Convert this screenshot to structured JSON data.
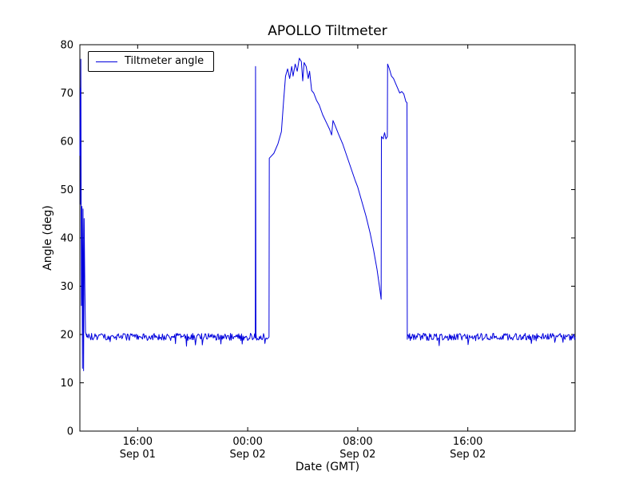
{
  "chart_data": {
    "type": "line",
    "title": "APOLLO Tiltmeter",
    "xlabel": "Date (GMT)",
    "ylabel": "Angle (deg)",
    "legend": {
      "position": "upper left",
      "entries": [
        {
          "label": "Tiltmeter angle",
          "color": "#0000dd"
        }
      ]
    },
    "axes": {
      "x_units": "hours since Sep 01 00:00 GMT",
      "xlim": [
        11.8,
        47.8
      ],
      "ylim": [
        0,
        80
      ],
      "yticks": [
        0,
        10,
        20,
        30,
        40,
        50,
        60,
        70,
        80
      ],
      "xticks": [
        {
          "t": 16,
          "time": "16:00",
          "date": "Sep 01"
        },
        {
          "t": 24,
          "time": "00:00",
          "date": "Sep 02"
        },
        {
          "t": 32,
          "time": "08:00",
          "date": "Sep 02"
        },
        {
          "t": 40,
          "time": "16:00",
          "date": "Sep 02"
        }
      ],
      "grid": false,
      "frame_color": "#000000"
    },
    "style": {
      "line_color": "#0000dd",
      "line_width": 1
    },
    "baseline": {
      "value": 19.5,
      "noise_amplitude": 0.75,
      "step_hours": 0.05,
      "seed": 1234
    },
    "segments": [
      {
        "mode": "points",
        "points": [
          [
            11.8,
            57
          ],
          [
            11.83,
            71
          ],
          [
            11.85,
            47
          ],
          [
            11.87,
            77
          ],
          [
            11.91,
            26
          ],
          [
            11.95,
            46.5
          ],
          [
            11.99,
            13
          ],
          [
            12.03,
            46
          ],
          [
            12.07,
            12.5
          ],
          [
            12.11,
            44
          ],
          [
            12.16,
            30
          ],
          [
            12.21,
            20.5
          ],
          [
            12.3,
            19.5
          ]
        ]
      },
      {
        "mode": "noise",
        "from": 12.3,
        "to": 24.54
      },
      {
        "mode": "points",
        "points": [
          [
            24.55,
            19.3
          ],
          [
            24.57,
            75.5
          ],
          [
            24.6,
            19.3
          ]
        ]
      },
      {
        "mode": "noise",
        "from": 24.6,
        "to": 25.55
      },
      {
        "mode": "points",
        "points": [
          [
            25.57,
            56.5
          ],
          [
            25.9,
            57.5
          ],
          [
            26.2,
            59.5
          ],
          [
            26.45,
            62
          ],
          [
            26.6,
            68
          ],
          [
            26.75,
            73.5
          ],
          [
            26.9,
            75
          ],
          [
            27.05,
            73
          ],
          [
            27.2,
            75.5
          ],
          [
            27.3,
            73.5
          ],
          [
            27.45,
            76
          ],
          [
            27.6,
            74.5
          ],
          [
            27.75,
            77.2
          ],
          [
            27.9,
            76.5
          ],
          [
            28.0,
            72.5
          ],
          [
            28.1,
            76.3
          ],
          [
            28.25,
            75.5
          ],
          [
            28.4,
            73
          ],
          [
            28.5,
            74.5
          ],
          [
            28.65,
            70.5
          ],
          [
            28.8,
            70
          ],
          [
            29.0,
            68.5
          ],
          [
            29.2,
            67.5
          ],
          [
            29.45,
            65.5
          ],
          [
            29.7,
            64
          ],
          [
            29.95,
            62.5
          ],
          [
            30.1,
            61.3
          ],
          [
            30.2,
            64.3
          ],
          [
            30.35,
            63.3
          ],
          [
            30.6,
            61.5
          ],
          [
            30.9,
            59.5
          ],
          [
            31.2,
            57
          ],
          [
            31.5,
            54.5
          ],
          [
            31.8,
            52
          ],
          [
            32.0,
            50.5
          ],
          [
            32.3,
            47.5
          ],
          [
            32.6,
            44.5
          ],
          [
            32.9,
            41
          ],
          [
            33.15,
            37.5
          ],
          [
            33.4,
            33.5
          ],
          [
            33.6,
            29.5
          ],
          [
            33.7,
            27.3
          ],
          [
            33.72,
            61
          ],
          [
            33.85,
            60.5
          ],
          [
            33.95,
            61.8
          ],
          [
            34.05,
            60.5
          ],
          [
            34.15,
            61
          ],
          [
            34.17,
            76
          ],
          [
            34.3,
            75
          ],
          [
            34.45,
            73.5
          ],
          [
            34.6,
            73
          ],
          [
            34.75,
            72
          ],
          [
            34.9,
            71
          ],
          [
            35.05,
            70
          ],
          [
            35.2,
            70.3
          ],
          [
            35.35,
            69.8
          ],
          [
            35.5,
            68.2
          ],
          [
            35.58,
            68
          ],
          [
            35.6,
            19.0
          ]
        ]
      },
      {
        "mode": "noise",
        "from": 35.62,
        "to": 47.8
      }
    ]
  }
}
